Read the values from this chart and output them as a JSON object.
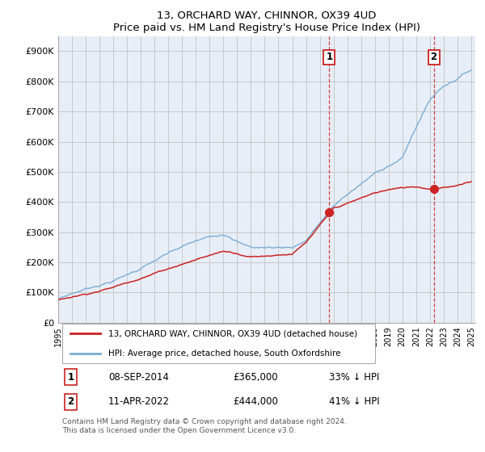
{
  "title": "13, ORCHARD WAY, CHINNOR, OX39 4UD",
  "subtitle": "Price paid vs. HM Land Registry's House Price Index (HPI)",
  "ylim": [
    0,
    950000
  ],
  "yticks": [
    0,
    100000,
    200000,
    300000,
    400000,
    500000,
    600000,
    700000,
    800000,
    900000
  ],
  "ytick_labels": [
    "£0",
    "£100K",
    "£200K",
    "£300K",
    "£400K",
    "£500K",
    "£600K",
    "£700K",
    "£800K",
    "£900K"
  ],
  "hpi_color": "#7aadd4",
  "price_color": "#cc2222",
  "background_color": "#e8eef8",
  "grid_color": "#c8c8c8",
  "sale1_x": 2014.69,
  "sale1_price": 365000,
  "sale2_x": 2022.28,
  "sale2_price": 444000,
  "legend_line1": "13, ORCHARD WAY, CHINNOR, OX39 4UD (detached house)",
  "legend_line2": "HPI: Average price, detached house, South Oxfordshire",
  "footnote": "Contains HM Land Registry data © Crown copyright and database right 2024.\nThis data is licensed under the Open Government Licence v3.0.",
  "table_row1_num": "1",
  "table_row1_date": "08-SEP-2014",
  "table_row1_price": "£365,000",
  "table_row1_pct": "33% ↓ HPI",
  "table_row2_num": "2",
  "table_row2_date": "11-APR-2022",
  "table_row2_price": "£444,000",
  "table_row2_pct": "41% ↓ HPI"
}
